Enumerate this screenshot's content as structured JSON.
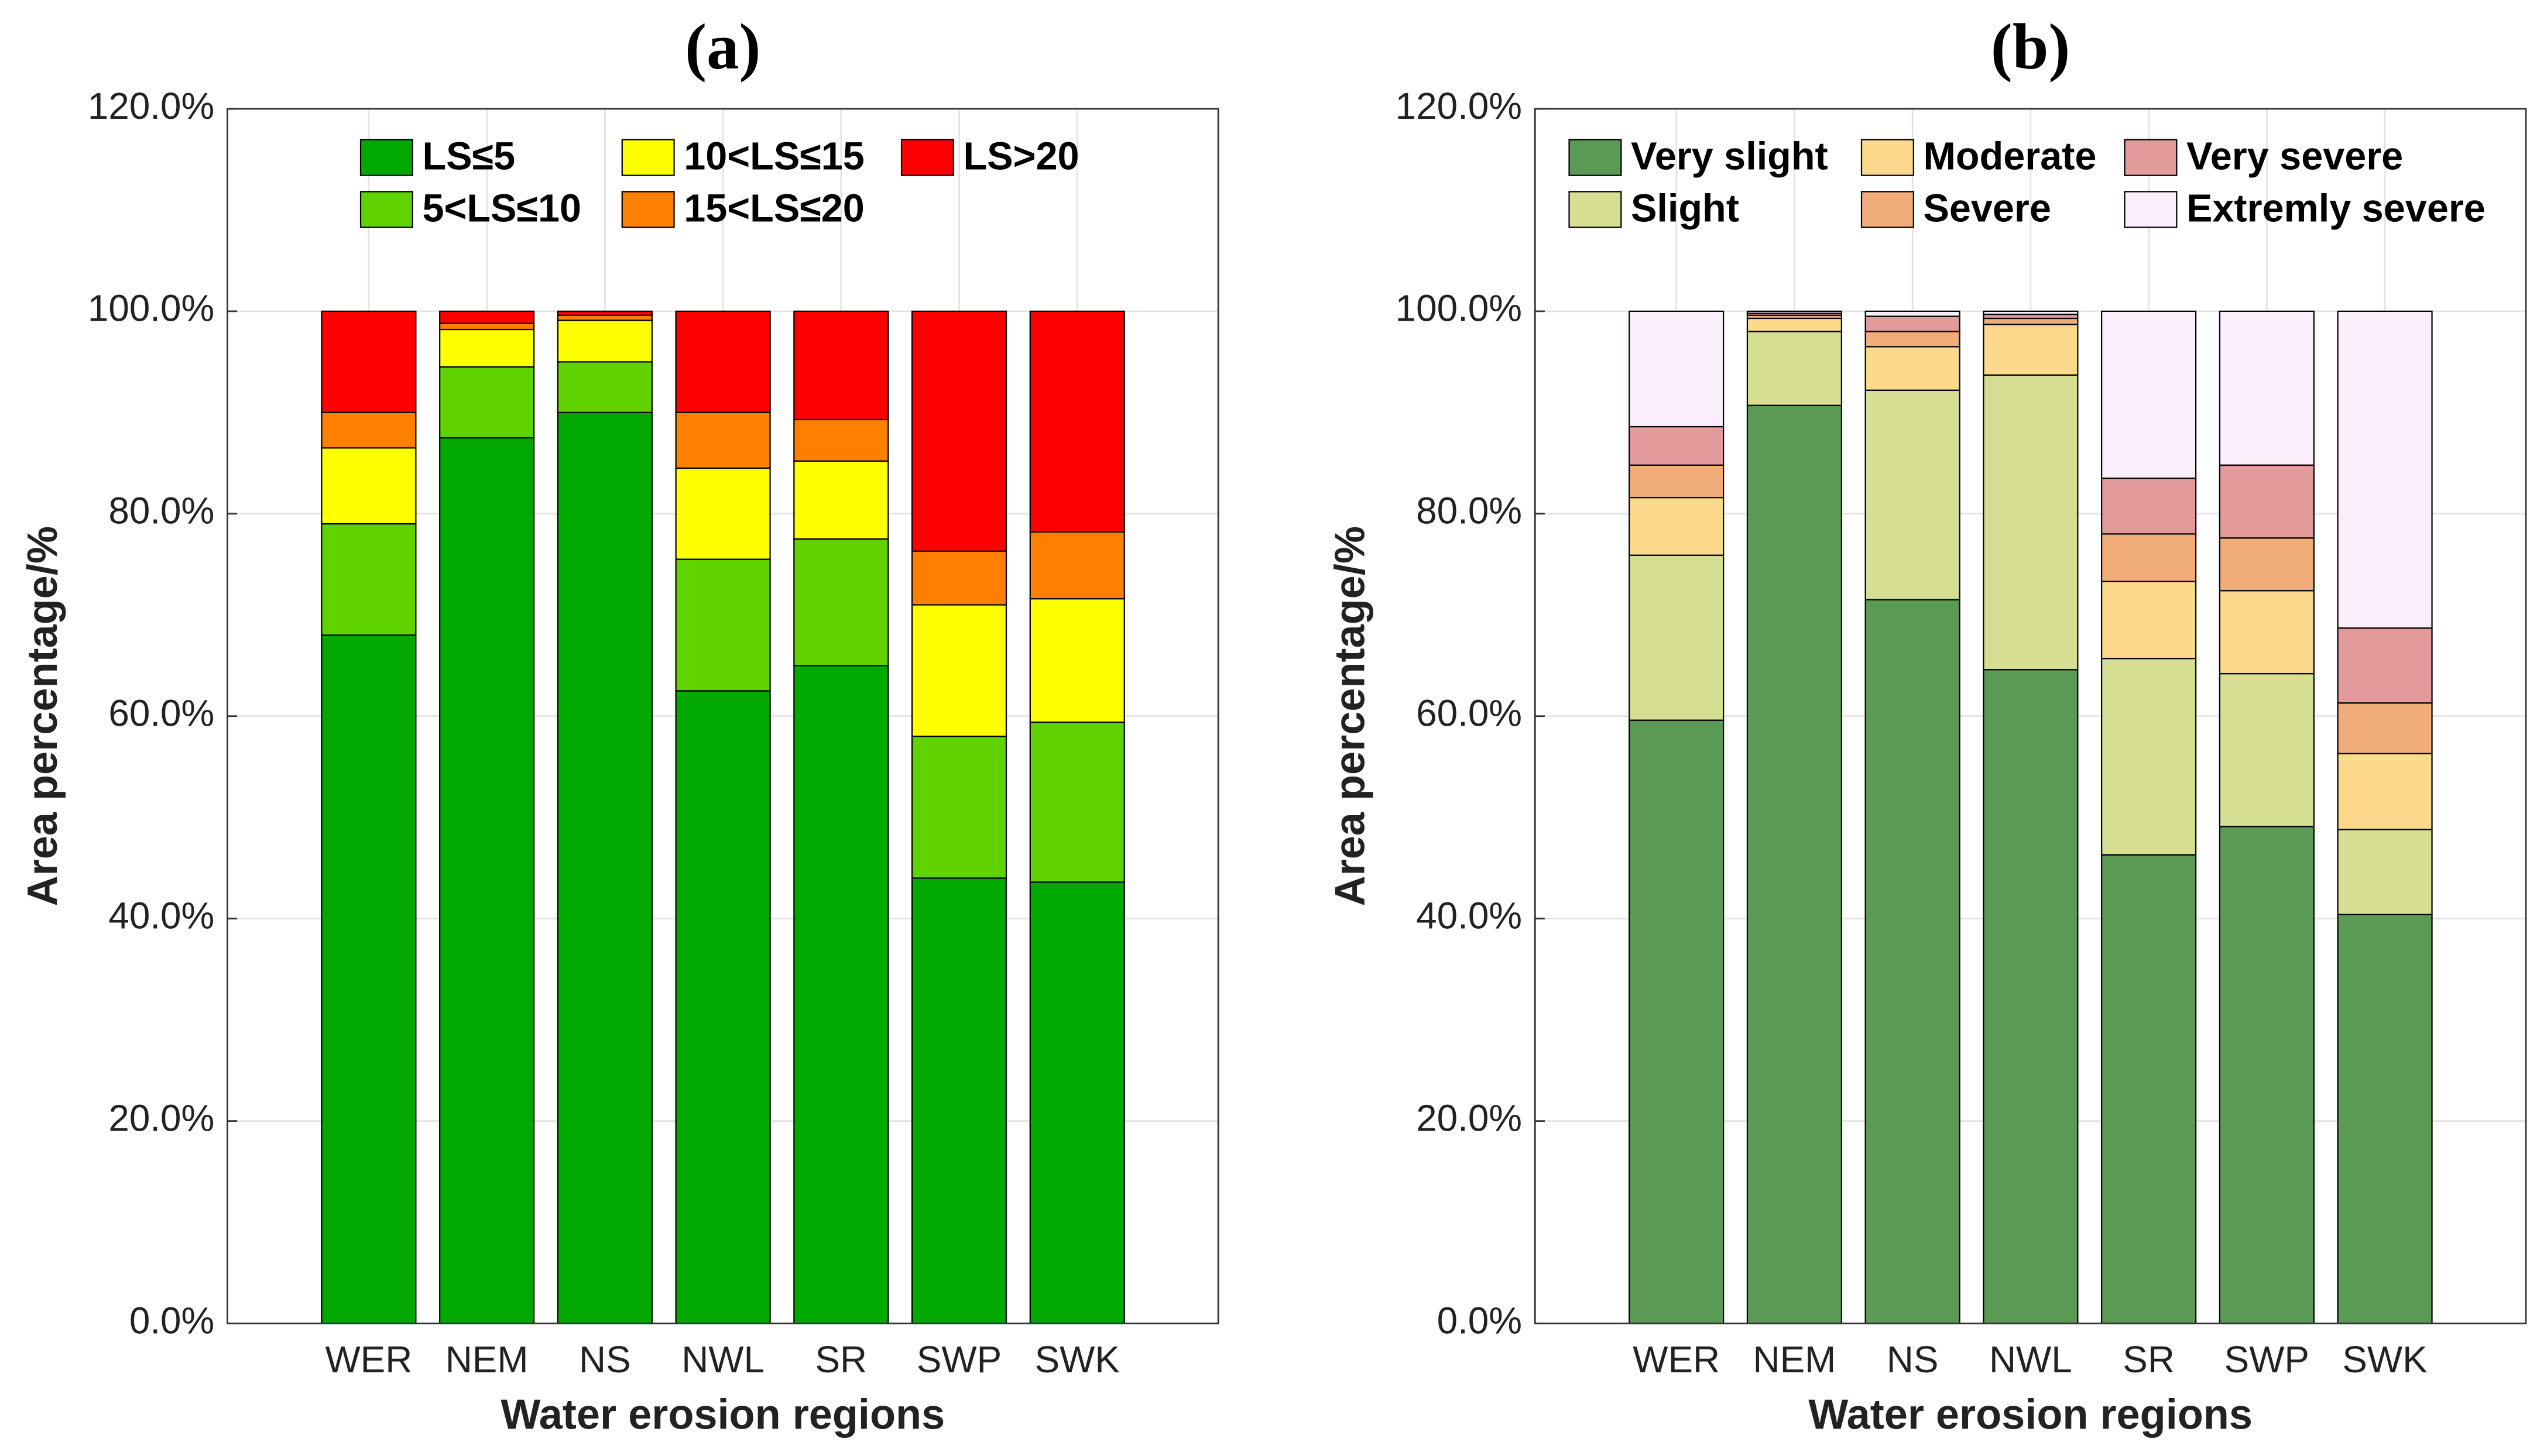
{
  "chart_data": [
    {
      "type": "stacked_bar",
      "title": "(a)",
      "x_label": "Water erosion regions",
      "y_label": "Area percentage/%",
      "categories": [
        "WER",
        "NEM",
        "NS",
        "NWL",
        "SR",
        "SWP",
        "SWK"
      ],
      "series": [
        {
          "name": "LS≤5",
          "color": "#00a800",
          "values": [
            68,
            87.5,
            90,
            62.5,
            65,
            44,
            43.6
          ]
        },
        {
          "name": "5<LS≤10",
          "color": "#5fd200",
          "values": [
            11,
            7,
            5,
            13,
            12.5,
            14,
            15.8
          ]
        },
        {
          "name": "10<LS≤15",
          "color": "#ffff00",
          "values": [
            7.5,
            3.7,
            4.1,
            9,
            7.7,
            13,
            12.2
          ]
        },
        {
          "name": "15<LS≤20",
          "color": "#ff8000",
          "values": [
            3.5,
            0.6,
            0.5,
            5.5,
            4.1,
            5.3,
            6.6
          ]
        },
        {
          "name": "LS>20",
          "color": "#ff0000",
          "values": [
            10,
            1.2,
            0.4,
            10,
            10.7,
            23.7,
            21.8
          ]
        }
      ],
      "ylim": [
        0,
        120
      ],
      "yticks": [
        {
          "value": 0,
          "label": "0.0%"
        },
        {
          "value": 20,
          "label": "20.0%"
        },
        {
          "value": 40,
          "label": "40.0%"
        },
        {
          "value": 60,
          "label": "60.0%"
        },
        {
          "value": 80,
          "label": "80.0%"
        },
        {
          "value": 100,
          "label": "100.0%"
        },
        {
          "value": 120,
          "label": "120.0%"
        }
      ],
      "grid": true
    },
    {
      "type": "stacked_bar",
      "title": "(b)",
      "x_label": "Water erosion regions",
      "y_label": "Area percentage/%",
      "categories": [
        "WER",
        "NEM",
        "NS",
        "NWL",
        "SR",
        "SWP",
        "SWK"
      ],
      "series": [
        {
          "name": "Very slight",
          "color": "#5a9a55",
          "values": [
            59.6,
            90.7,
            71.5,
            64.6,
            46.3,
            49.1,
            40.4
          ]
        },
        {
          "name": "Slight",
          "color": "#d6de93",
          "values": [
            16.3,
            7.3,
            20.7,
            29.1,
            19.4,
            15.1,
            8.4
          ]
        },
        {
          "name": "Moderate",
          "color": "#fcd98c",
          "values": [
            5.7,
            1.3,
            4.3,
            5,
            7.6,
            8.2,
            7.5
          ]
        },
        {
          "name": "Severe",
          "color": "#f0ad7a",
          "values": [
            3.2,
            0.3,
            1.5,
            0.6,
            4.7,
            5.2,
            5
          ]
        },
        {
          "name": "Very severe",
          "color": "#e29a9a",
          "values": [
            3.8,
            0.2,
            1.5,
            0.4,
            5.5,
            7.2,
            7.4
          ]
        },
        {
          "name": "Extremly severe",
          "color": "#fbeefb",
          "values": [
            11.4,
            0.2,
            0.5,
            0.3,
            16.5,
            15.2,
            31.3
          ]
        }
      ],
      "ylim": [
        0,
        120
      ],
      "yticks": [
        {
          "value": 0,
          "label": "0.0%"
        },
        {
          "value": 20,
          "label": "20.0%"
        },
        {
          "value": 40,
          "label": "40.0%"
        },
        {
          "value": 60,
          "label": "60.0%"
        },
        {
          "value": 80,
          "label": "80.0%"
        },
        {
          "value": 100,
          "label": "100.0%"
        },
        {
          "value": 120,
          "label": "120.0%"
        }
      ],
      "grid": true
    }
  ]
}
